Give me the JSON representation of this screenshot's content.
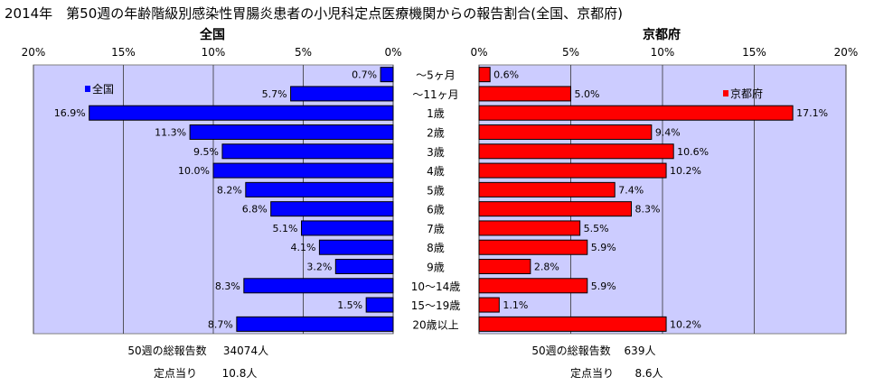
{
  "title": "2014年　第50週の年齢階級別感染性胃腸炎患者の小児科定点医療機関からの報告割合(全国、京都府)",
  "colors": {
    "plot_bg": "#ccccff",
    "national_bar": "#0000ff",
    "kyoto_bar": "#ff0000",
    "grid": "#333333"
  },
  "chart_data": [
    {
      "type": "bar",
      "orientation": "horizontal",
      "direction": "right-to-left",
      "title": "全国",
      "xlim": [
        0,
        20
      ],
      "ticks": [
        "20%",
        "15%",
        "10%",
        "5%",
        "0%"
      ],
      "tick_values": [
        20,
        15,
        10,
        5,
        0
      ],
      "legend": "全国",
      "legend_position": "top-left",
      "categories": [
        "～5ヶ月",
        "～11ヶ月",
        "1歳",
        "2歳",
        "3歳",
        "4歳",
        "5歳",
        "6歳",
        "7歳",
        "8歳",
        "9歳",
        "10～14歳",
        "15～19歳",
        "20歳以上"
      ],
      "values": [
        0.7,
        5.7,
        16.9,
        11.3,
        9.5,
        10.0,
        8.2,
        6.8,
        5.1,
        4.1,
        3.2,
        8.3,
        1.5,
        8.7
      ],
      "value_labels": [
        "0.7%",
        "5.7%",
        "16.9%",
        "11.3%",
        "9.5%",
        "10.0%",
        "8.2%",
        "6.8%",
        "5.1%",
        "4.1%",
        "3.2%",
        "8.3%",
        "1.5%",
        "8.7%"
      ],
      "total_label": "50週の総報告数",
      "total_value": "34074人",
      "per_site_label": "定点当り",
      "per_site_value": "10.8人"
    },
    {
      "type": "bar",
      "orientation": "horizontal",
      "direction": "left-to-right",
      "title": "京都府",
      "xlim": [
        0,
        20
      ],
      "ticks": [
        "0%",
        "5%",
        "10%",
        "15%",
        "20%"
      ],
      "tick_values": [
        0,
        5,
        10,
        15,
        20
      ],
      "legend": "京都府",
      "legend_position": "top-right",
      "categories": [
        "～5ヶ月",
        "～11ヶ月",
        "1歳",
        "2歳",
        "3歳",
        "4歳",
        "5歳",
        "6歳",
        "7歳",
        "8歳",
        "9歳",
        "10～14歳",
        "15～19歳",
        "20歳以上"
      ],
      "values": [
        0.6,
        5.0,
        17.1,
        9.4,
        10.6,
        10.2,
        7.4,
        8.3,
        5.5,
        5.9,
        2.8,
        5.9,
        1.1,
        10.2
      ],
      "value_labels": [
        "0.6%",
        "5.0%",
        "17.1%",
        "9.4%",
        "10.6%",
        "10.2%",
        "7.4%",
        "8.3%",
        "5.5%",
        "5.9%",
        "2.8%",
        "5.9%",
        "1.1%",
        "10.2%"
      ],
      "total_label": "50週の総報告数",
      "total_value": "639人",
      "per_site_label": "定点当り",
      "per_site_value": "8.6人"
    }
  ]
}
